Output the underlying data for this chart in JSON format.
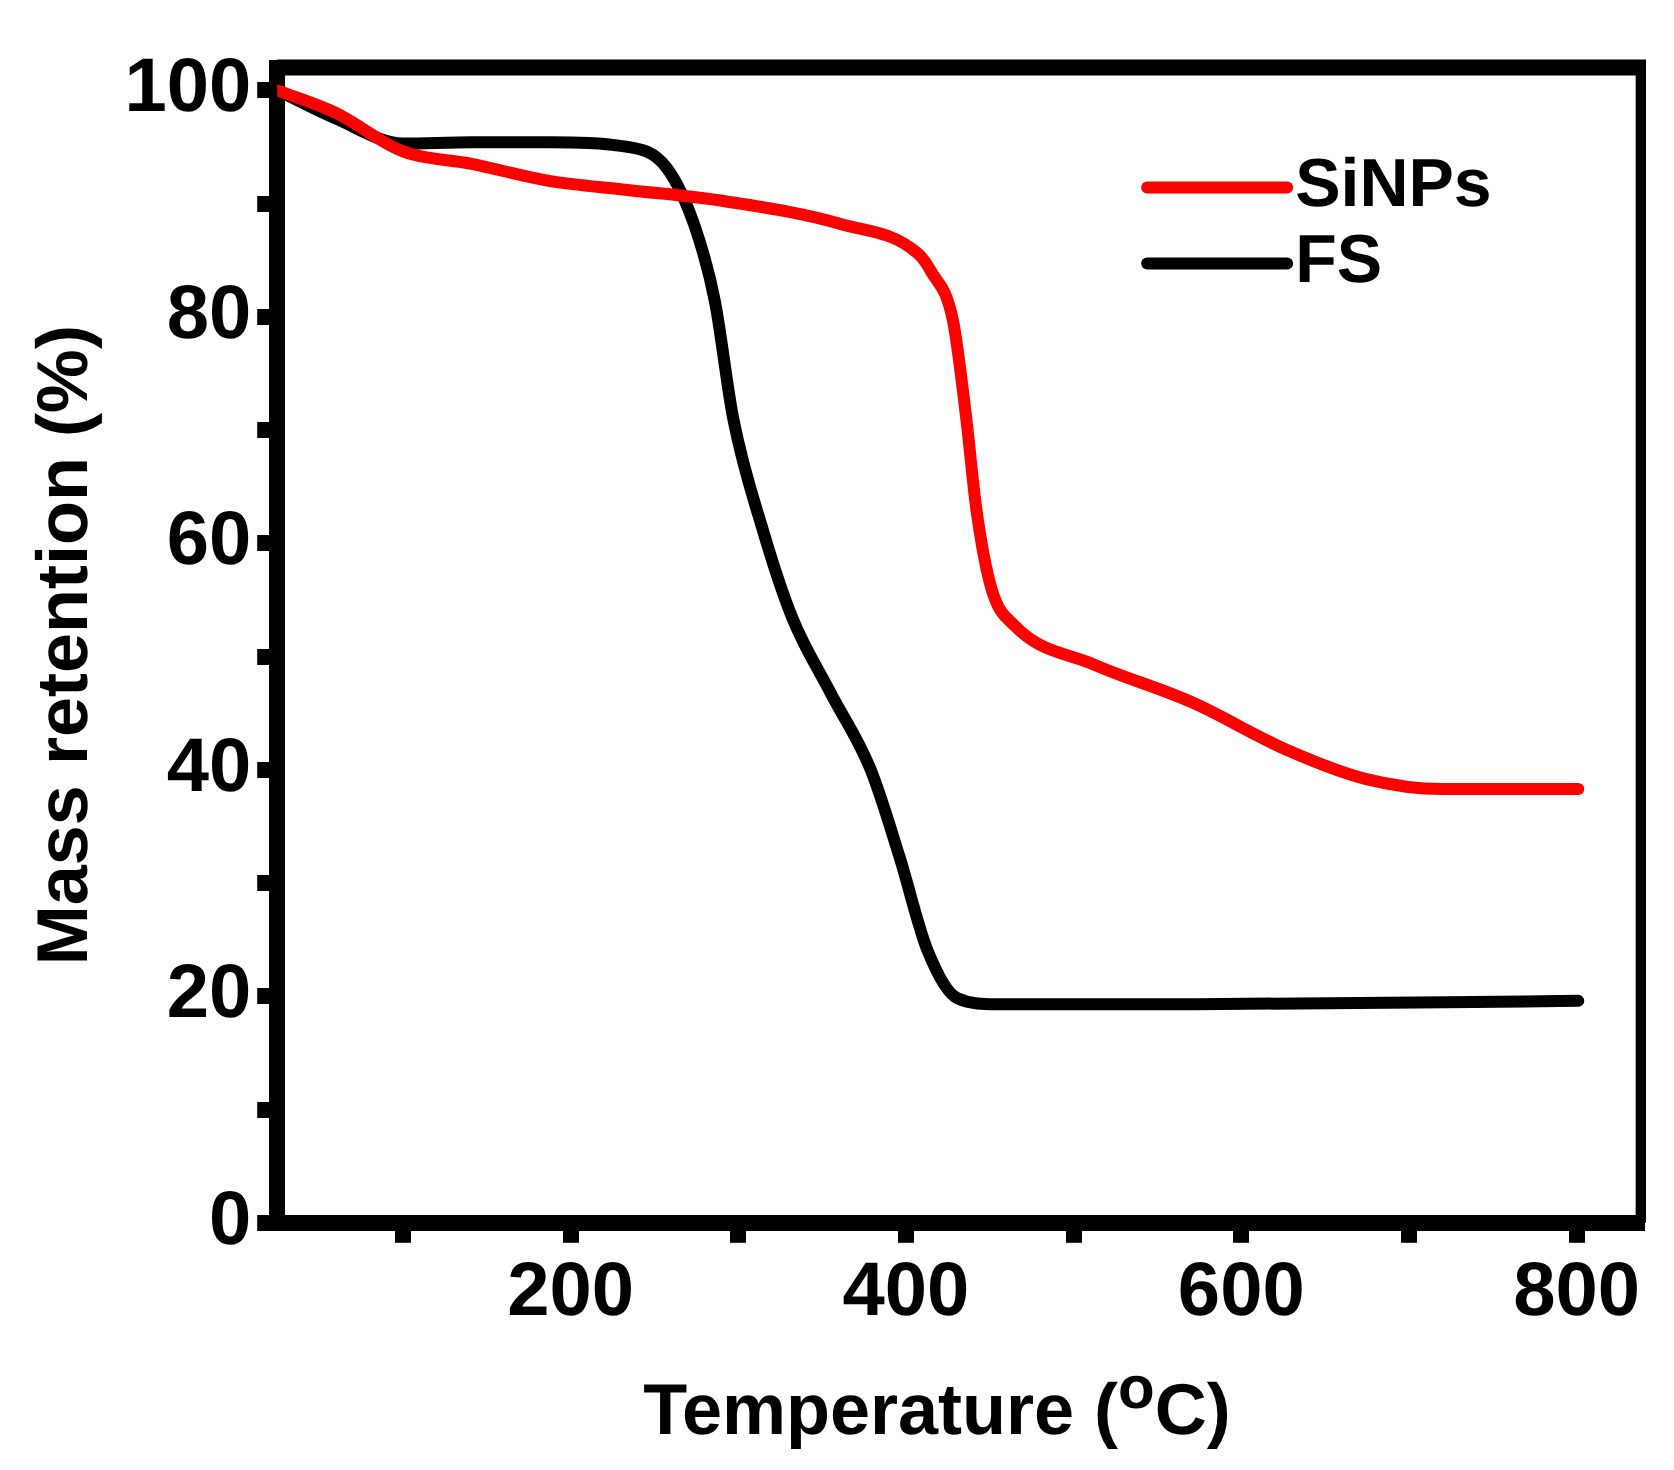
{
  "chart_data": {
    "type": "line",
    "xlabel": "Temperature ($^{o}$C)",
    "ylabel": "Mass retention (%)",
    "xlim": [
      25,
      840
    ],
    "xticks": [
      {
        "value": 100,
        "label": null
      },
      200,
      {
        "value": 300,
        "label": null
      },
      400,
      {
        "value": 500,
        "label": null
      },
      600,
      {
        "value": 700,
        "label": null
      },
      800
    ],
    "ylim": [
      0,
      102
    ],
    "yticks": [
      0,
      {
        "value": 10,
        "label": null
      },
      20,
      {
        "value": 30,
        "label": null
      },
      40,
      {
        "value": 50,
        "label": null
      },
      60,
      {
        "value": 70,
        "label": null
      },
      80,
      {
        "value": 90,
        "label": null
      },
      100
    ],
    "grid": false,
    "legend": "top right",
    "marker": "none",
    "line_style": "solid",
    "series": [
      {
        "name": "SiNPs",
        "color": "#ff0000",
        "x": [
          25,
          60,
          100,
          141,
          187,
          234,
          292,
          361,
          407,
          415,
          428,
          436,
          442,
          451,
          465,
          512,
          570,
          628,
          674,
          720,
          801
        ],
        "values": [
          100,
          98,
          94.6,
          93.5,
          92,
          91.2,
          90.2,
          88.2,
          85.6,
          84,
          79.7,
          71,
          63,
          56,
          52.7,
          49.3,
          46,
          41.7,
          39.2,
          38.3,
          38.3
        ]
      },
      {
        "name": "FS",
        "color": "#000000",
        "x": [
          25,
          60,
          100,
          141,
          187,
          234,
          257,
          274,
          286,
          297,
          315,
          332,
          355,
          379,
          396,
          413,
          431,
          454,
          570,
          801
        ],
        "values": [
          100,
          97.5,
          95.3,
          95.4,
          95.4,
          95,
          93.2,
          88,
          81.4,
          71,
          61,
          53.5,
          46.8,
          40,
          32.4,
          24,
          19.8,
          19.3,
          19.3,
          19.6
        ]
      }
    ]
  }
}
